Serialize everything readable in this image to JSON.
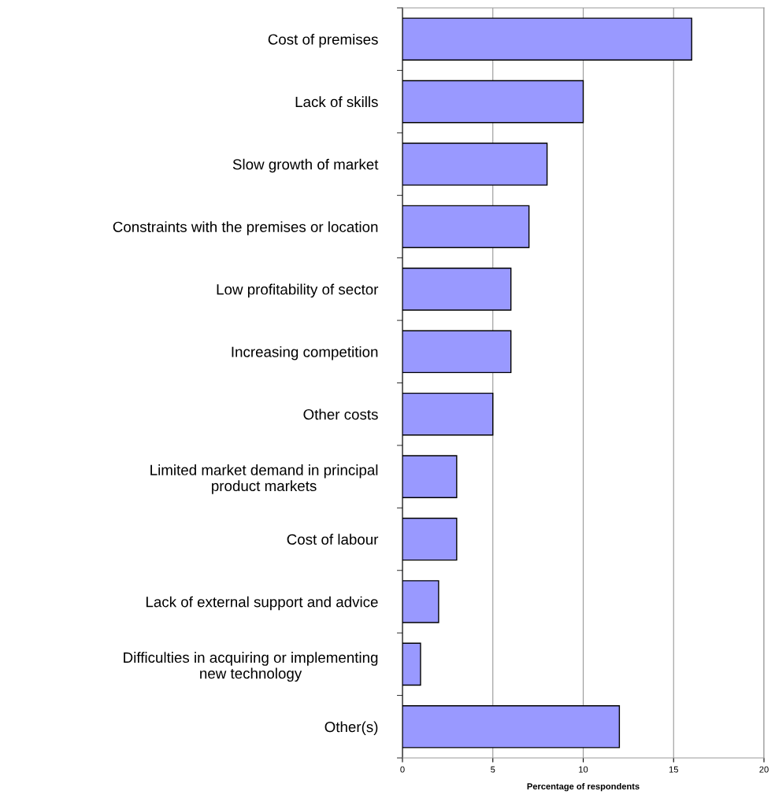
{
  "chart_data": {
    "type": "bar",
    "orientation": "horizontal",
    "xlabel": "Percentage of respondents",
    "categories": [
      "Cost of premises",
      "Lack of skills",
      "Slow growth of market",
      "Constraints with the premises or location",
      "Low profitability of sector",
      "Increasing competition",
      "Other costs",
      "Limited market demand in principal\nproduct markets",
      "Cost of labour",
      "Lack of external support and advice",
      "Difficulties in acquiring or implementing\nnew technology",
      "Other(s)"
    ],
    "values": [
      16,
      10,
      8,
      7,
      6,
      6,
      5,
      3,
      3,
      2,
      1,
      12
    ],
    "color": "#9999ff",
    "xlim": [
      0,
      20
    ],
    "xticks": [
      0,
      5,
      10,
      15,
      20
    ],
    "grid": "x",
    "legend": false
  }
}
